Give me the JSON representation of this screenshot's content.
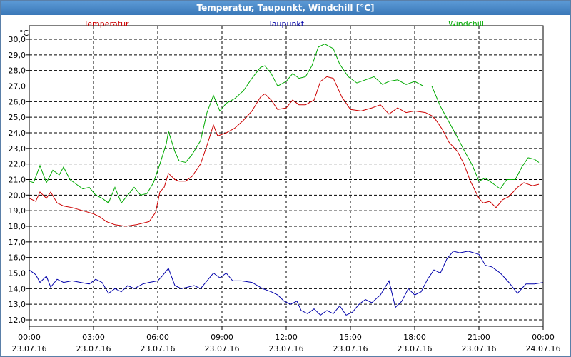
{
  "window": {
    "title": "Temperatur, Taupunkt, Windchill [°C]"
  },
  "chart_data": {
    "type": "line",
    "title": "Temperatur, Taupunkt, Windchill [°C]",
    "ylabel": "°C",
    "xlabel": "",
    "ylim": [
      12.0,
      30.0
    ],
    "xlim": [
      0,
      24
    ],
    "grid": true,
    "legend": "top",
    "y_ticks": [
      "12,0",
      "13,0",
      "14,0",
      "15,0",
      "16,0",
      "17,0",
      "18,0",
      "19,0",
      "20,0",
      "21,0",
      "22,0",
      "23,0",
      "24,0",
      "25,0",
      "26,0",
      "27,0",
      "28,0",
      "29,0",
      "30,0"
    ],
    "x_ticks": [
      {
        "time": "00:00",
        "date": "23.07.16"
      },
      {
        "time": "03:00",
        "date": "23.07.16"
      },
      {
        "time": "06:00",
        "date": "23.07.16"
      },
      {
        "time": "09:00",
        "date": "23.07.16"
      },
      {
        "time": "12:00",
        "date": "23.07.16"
      },
      {
        "time": "15:00",
        "date": "23.07.16"
      },
      {
        "time": "18:00",
        "date": "23.07.16"
      },
      {
        "time": "21:00",
        "date": "23.07.16"
      },
      {
        "time": "00:00",
        "date": "24.07.16"
      }
    ],
    "series": [
      {
        "name": "Temperatur",
        "color": "#cc0000",
        "points": [
          [
            0,
            19.8
          ],
          [
            0.3,
            19.6
          ],
          [
            0.5,
            20.2
          ],
          [
            0.8,
            19.8
          ],
          [
            1.0,
            20.2
          ],
          [
            1.3,
            19.5
          ],
          [
            1.6,
            19.3
          ],
          [
            2.0,
            19.2
          ],
          [
            2.5,
            19.0
          ],
          [
            3.0,
            18.8
          ],
          [
            3.3,
            18.6
          ],
          [
            3.6,
            18.3
          ],
          [
            4.0,
            18.1
          ],
          [
            4.5,
            18.0
          ],
          [
            5.0,
            18.1
          ],
          [
            5.3,
            18.2
          ],
          [
            5.6,
            18.3
          ],
          [
            5.9,
            18.9
          ],
          [
            6.1,
            20.2
          ],
          [
            6.3,
            20.5
          ],
          [
            6.5,
            21.4
          ],
          [
            6.8,
            21.0
          ],
          [
            7.0,
            20.9
          ],
          [
            7.3,
            20.9
          ],
          [
            7.6,
            21.2
          ],
          [
            8.0,
            22.0
          ],
          [
            8.3,
            23.2
          ],
          [
            8.6,
            24.5
          ],
          [
            8.8,
            23.8
          ],
          [
            9.2,
            24.0
          ],
          [
            9.6,
            24.3
          ],
          [
            10.0,
            24.8
          ],
          [
            10.4,
            25.4
          ],
          [
            10.8,
            26.3
          ],
          [
            11.0,
            26.5
          ],
          [
            11.3,
            26.1
          ],
          [
            11.6,
            25.5
          ],
          [
            12.0,
            25.6
          ],
          [
            12.3,
            26.1
          ],
          [
            12.6,
            25.8
          ],
          [
            12.9,
            25.8
          ],
          [
            13.3,
            26.1
          ],
          [
            13.6,
            27.3
          ],
          [
            13.9,
            27.6
          ],
          [
            14.2,
            27.5
          ],
          [
            14.6,
            26.3
          ],
          [
            15.0,
            25.5
          ],
          [
            15.5,
            25.4
          ],
          [
            16.0,
            25.6
          ],
          [
            16.4,
            25.8
          ],
          [
            16.8,
            25.2
          ],
          [
            17.2,
            25.6
          ],
          [
            17.6,
            25.3
          ],
          [
            18.0,
            25.4
          ],
          [
            18.5,
            25.3
          ],
          [
            18.8,
            25.1
          ],
          [
            19.0,
            24.8
          ],
          [
            19.3,
            24.2
          ],
          [
            19.6,
            23.4
          ],
          [
            20.0,
            22.8
          ],
          [
            20.3,
            22.0
          ],
          [
            20.6,
            20.9
          ],
          [
            21.0,
            19.8
          ],
          [
            21.2,
            19.5
          ],
          [
            21.5,
            19.6
          ],
          [
            21.8,
            19.2
          ],
          [
            22.1,
            19.7
          ],
          [
            22.4,
            19.9
          ],
          [
            22.8,
            20.5
          ],
          [
            23.1,
            20.8
          ],
          [
            23.5,
            20.6
          ],
          [
            23.8,
            20.7
          ]
        ]
      },
      {
        "name": "Taupunkt",
        "color": "#0000aa",
        "points": [
          [
            0,
            15.2
          ],
          [
            0.3,
            14.9
          ],
          [
            0.5,
            14.4
          ],
          [
            0.8,
            14.8
          ],
          [
            1.0,
            14.1
          ],
          [
            1.3,
            14.6
          ],
          [
            1.6,
            14.4
          ],
          [
            2.0,
            14.5
          ],
          [
            2.4,
            14.4
          ],
          [
            2.8,
            14.3
          ],
          [
            3.1,
            14.6
          ],
          [
            3.4,
            14.4
          ],
          [
            3.7,
            13.7
          ],
          [
            4.0,
            14.0
          ],
          [
            4.3,
            13.8
          ],
          [
            4.6,
            14.2
          ],
          [
            4.9,
            14.0
          ],
          [
            5.3,
            14.3
          ],
          [
            5.6,
            14.4
          ],
          [
            6.0,
            14.5
          ],
          [
            6.2,
            14.8
          ],
          [
            6.5,
            15.3
          ],
          [
            6.8,
            14.2
          ],
          [
            7.1,
            14.0
          ],
          [
            7.4,
            14.1
          ],
          [
            7.7,
            14.2
          ],
          [
            8.0,
            14.0
          ],
          [
            8.3,
            14.5
          ],
          [
            8.6,
            15.0
          ],
          [
            8.9,
            14.7
          ],
          [
            9.2,
            15.0
          ],
          [
            9.5,
            14.5
          ],
          [
            9.9,
            14.5
          ],
          [
            10.4,
            14.4
          ],
          [
            10.9,
            14.0
          ],
          [
            11.3,
            13.8
          ],
          [
            11.6,
            13.6
          ],
          [
            11.9,
            13.2
          ],
          [
            12.2,
            13.0
          ],
          [
            12.5,
            13.2
          ],
          [
            12.7,
            12.6
          ],
          [
            13.0,
            12.4
          ],
          [
            13.3,
            12.7
          ],
          [
            13.6,
            12.3
          ],
          [
            13.9,
            12.6
          ],
          [
            14.2,
            12.4
          ],
          [
            14.5,
            12.9
          ],
          [
            14.8,
            12.3
          ],
          [
            15.1,
            12.5
          ],
          [
            15.4,
            13.0
          ],
          [
            15.7,
            13.3
          ],
          [
            16.0,
            13.1
          ],
          [
            16.4,
            13.6
          ],
          [
            16.8,
            14.5
          ],
          [
            17.1,
            12.8
          ],
          [
            17.4,
            13.2
          ],
          [
            17.7,
            14.0
          ],
          [
            18.0,
            13.6
          ],
          [
            18.3,
            13.8
          ],
          [
            18.6,
            14.6
          ],
          [
            18.9,
            15.2
          ],
          [
            19.2,
            15.0
          ],
          [
            19.5,
            15.9
          ],
          [
            19.8,
            16.4
          ],
          [
            20.1,
            16.3
          ],
          [
            20.5,
            16.4
          ],
          [
            21.0,
            16.2
          ],
          [
            21.3,
            15.5
          ],
          [
            21.6,
            15.4
          ],
          [
            22.0,
            15.0
          ],
          [
            22.4,
            14.4
          ],
          [
            22.8,
            13.7
          ],
          [
            23.2,
            14.3
          ],
          [
            23.6,
            14.3
          ],
          [
            24.0,
            14.4
          ]
        ]
      },
      {
        "name": "Windchill",
        "color": "#00aa00",
        "points": [
          [
            0,
            20.9
          ],
          [
            0.2,
            20.8
          ],
          [
            0.5,
            21.9
          ],
          [
            0.8,
            20.8
          ],
          [
            1.1,
            21.6
          ],
          [
            1.4,
            21.3
          ],
          [
            1.6,
            21.8
          ],
          [
            1.9,
            21.0
          ],
          [
            2.2,
            20.7
          ],
          [
            2.5,
            20.4
          ],
          [
            2.8,
            20.5
          ],
          [
            3.1,
            20.0
          ],
          [
            3.4,
            19.8
          ],
          [
            3.7,
            19.5
          ],
          [
            4.0,
            20.5
          ],
          [
            4.3,
            19.5
          ],
          [
            4.6,
            20.0
          ],
          [
            4.9,
            20.5
          ],
          [
            5.2,
            20.0
          ],
          [
            5.5,
            20.1
          ],
          [
            5.8,
            20.8
          ],
          [
            6.1,
            22.0
          ],
          [
            6.4,
            23.3
          ],
          [
            6.5,
            24.1
          ],
          [
            6.8,
            22.8
          ],
          [
            7.0,
            22.2
          ],
          [
            7.3,
            22.1
          ],
          [
            7.6,
            22.6
          ],
          [
            8.0,
            23.5
          ],
          [
            8.3,
            25.3
          ],
          [
            8.6,
            26.4
          ],
          [
            8.9,
            25.4
          ],
          [
            9.2,
            25.9
          ],
          [
            9.6,
            26.2
          ],
          [
            10.0,
            26.7
          ],
          [
            10.4,
            27.5
          ],
          [
            10.8,
            28.2
          ],
          [
            11.0,
            28.3
          ],
          [
            11.3,
            27.8
          ],
          [
            11.6,
            27.0
          ],
          [
            12.0,
            27.3
          ],
          [
            12.3,
            27.8
          ],
          [
            12.6,
            27.5
          ],
          [
            12.9,
            27.6
          ],
          [
            13.2,
            28.3
          ],
          [
            13.5,
            29.5
          ],
          [
            13.8,
            29.7
          ],
          [
            14.2,
            29.4
          ],
          [
            14.5,
            28.4
          ],
          [
            14.9,
            27.6
          ],
          [
            15.3,
            27.2
          ],
          [
            15.7,
            27.4
          ],
          [
            16.1,
            27.6
          ],
          [
            16.5,
            27.1
          ],
          [
            16.8,
            27.3
          ],
          [
            17.2,
            27.4
          ],
          [
            17.6,
            27.1
          ],
          [
            18.0,
            27.3
          ],
          [
            18.4,
            27.0
          ],
          [
            18.8,
            27.0
          ],
          [
            19.2,
            25.7
          ],
          [
            19.6,
            24.7
          ],
          [
            20.0,
            23.7
          ],
          [
            20.3,
            22.9
          ],
          [
            20.7,
            21.9
          ],
          [
            21.0,
            20.9
          ],
          [
            21.3,
            21.1
          ],
          [
            21.6,
            20.8
          ],
          [
            22.0,
            20.4
          ],
          [
            22.3,
            21.0
          ],
          [
            22.7,
            21.0
          ],
          [
            23.0,
            21.8
          ],
          [
            23.3,
            22.4
          ],
          [
            23.6,
            22.3
          ],
          [
            23.8,
            22.1
          ]
        ]
      }
    ]
  }
}
